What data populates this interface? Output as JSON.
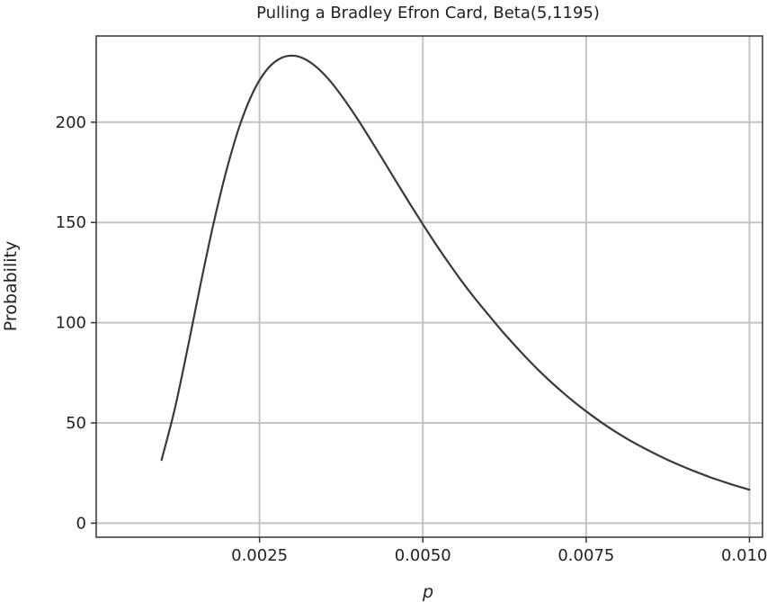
{
  "chart_data": {
    "type": "line",
    "title": "Pulling a Bradley Efron Card, Beta(5,1195)",
    "xlabel": "p",
    "ylabel": "Probability",
    "xlim": [
      0.0,
      0.0102
    ],
    "ylim": [
      -7,
      243
    ],
    "x_ticks": [
      0.0025,
      0.005,
      0.0075,
      0.01
    ],
    "x_tick_labels": [
      "0.0025",
      "0.0050",
      "0.0075",
      "0.0100"
    ],
    "y_ticks": [
      0,
      50,
      100,
      150,
      200
    ],
    "y_tick_labels": [
      "0",
      "50",
      "100",
      "150",
      "200"
    ],
    "grid": true,
    "legend": "none",
    "line_color": "#3a3a3a",
    "grid_color": "#c4c4c4",
    "series": [
      {
        "x": [
          0.001,
          0.0012,
          0.0014,
          0.0016,
          0.0018,
          0.002,
          0.0022,
          0.0024,
          0.0026,
          0.0028,
          0.003,
          0.0032,
          0.0034,
          0.0036,
          0.0038,
          0.004,
          0.0042,
          0.0044,
          0.0046,
          0.0048,
          0.005,
          0.0052,
          0.0054,
          0.0056,
          0.0058,
          0.006,
          0.0062,
          0.0064,
          0.0066,
          0.0068,
          0.007,
          0.0072,
          0.0074,
          0.0076,
          0.0078,
          0.008,
          0.0082,
          0.0084,
          0.0086,
          0.0088,
          0.009,
          0.0092,
          0.0094,
          0.0096,
          0.0098,
          0.01
        ],
        "y": [
          31.5,
          56.6,
          87.3,
          119.6,
          150.0,
          176.7,
          198.6,
          214.9,
          225.7,
          231.5,
          233.2,
          231.4,
          226.7,
          219.8,
          211.2,
          201.6,
          191.3,
          180.7,
          170.0,
          159.4,
          149.1,
          139.1,
          129.6,
          120.5,
          112.0,
          104.1,
          96.3,
          89.0,
          82.0,
          75.4,
          69.3,
          63.6,
          58.3,
          53.4,
          48.8,
          44.6,
          40.7,
          37.2,
          33.9,
          30.8,
          28.0,
          25.4,
          22.9,
          20.7,
          18.6,
          16.7
        ]
      }
    ]
  }
}
